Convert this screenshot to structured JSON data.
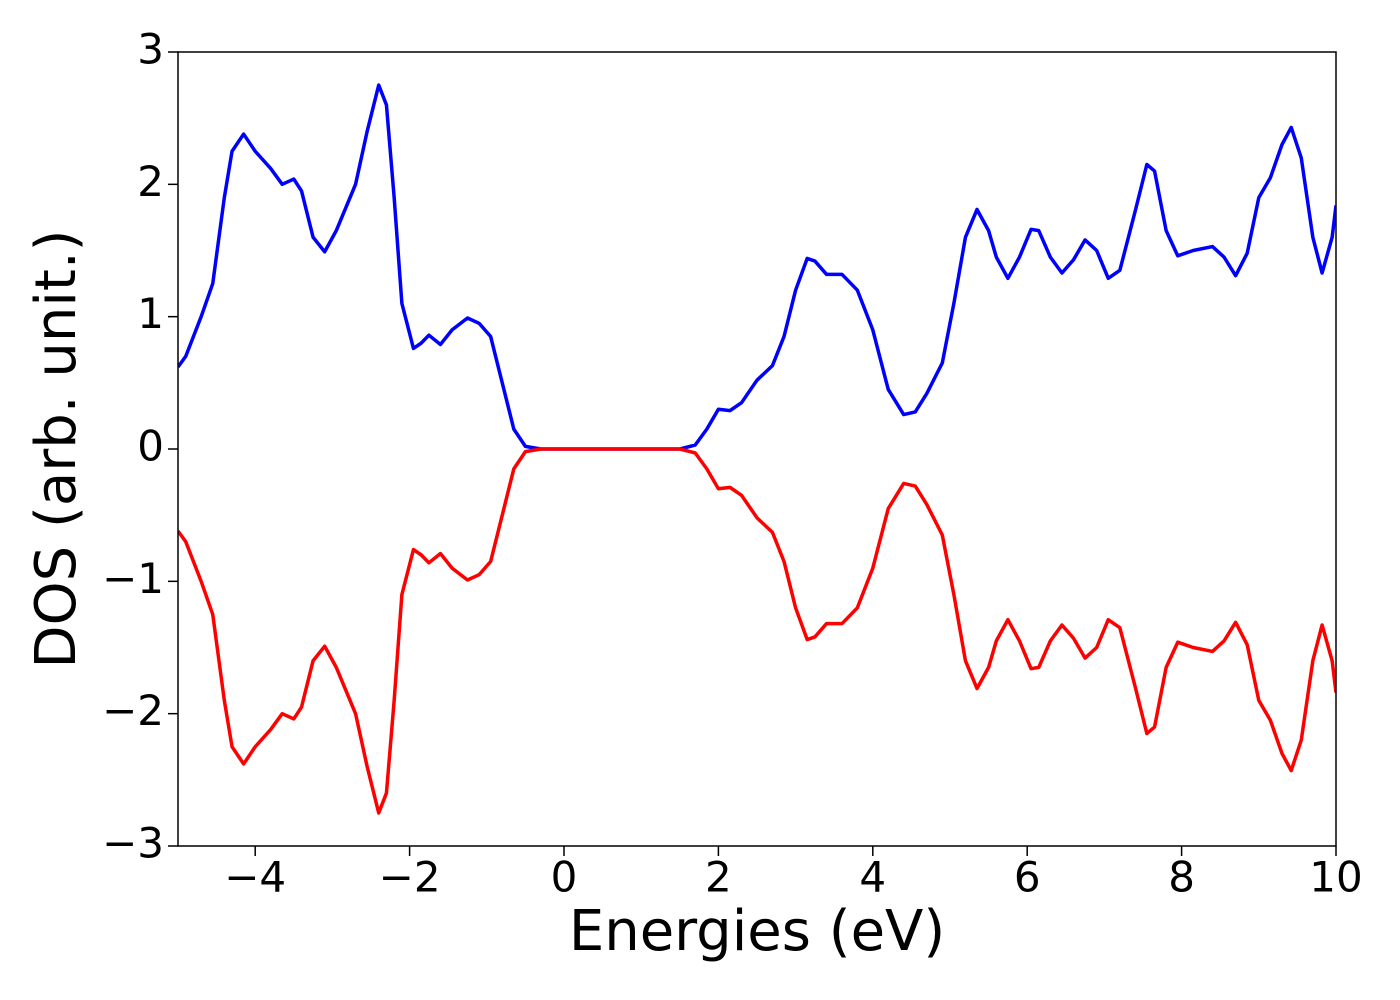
{
  "chart_data": {
    "type": "line",
    "xlabel": "Energies (eV)",
    "ylabel": "DOS (arb. unit.)",
    "x": [
      -5,
      -4.9,
      -4.7,
      -4.55,
      -4.4,
      -4.3,
      -4.15,
      -4.0,
      -3.8,
      -3.65,
      -3.5,
      -3.4,
      -3.25,
      -3.1,
      -2.95,
      -2.7,
      -2.55,
      -2.4,
      -2.3,
      -2.2,
      -2.1,
      -1.95,
      -1.85,
      -1.75,
      -1.6,
      -1.45,
      -1.25,
      -1.1,
      -0.95,
      -0.8,
      -0.65,
      -0.5,
      -0.3,
      1.5,
      1.7,
      1.85,
      2.0,
      2.15,
      2.3,
      2.5,
      2.7,
      2.85,
      3.0,
      3.15,
      3.25,
      3.4,
      3.6,
      3.8,
      4.0,
      4.2,
      4.4,
      4.55,
      4.7,
      4.9,
      5.05,
      5.2,
      5.35,
      5.5,
      5.6,
      5.75,
      5.9,
      6.05,
      6.15,
      6.3,
      6.45,
      6.6,
      6.75,
      6.9,
      7.05,
      7.2,
      7.4,
      7.55,
      7.65,
      7.8,
      7.95,
      8.15,
      8.4,
      8.55,
      8.7,
      8.85,
      9.0,
      9.15,
      9.3,
      9.42,
      9.55,
      9.7,
      9.82,
      9.95,
      10
    ],
    "series": [
      {
        "color": "#0000ff",
        "values": [
          0.62,
          0.7,
          1.0,
          1.25,
          1.9,
          2.25,
          2.38,
          2.25,
          2.12,
          2.0,
          2.04,
          1.95,
          1.6,
          1.49,
          1.65,
          2.0,
          2.4,
          2.75,
          2.6,
          1.9,
          1.1,
          0.76,
          0.8,
          0.86,
          0.79,
          0.9,
          0.99,
          0.95,
          0.85,
          0.5,
          0.15,
          0.02,
          0,
          0,
          0.03,
          0.15,
          0.3,
          0.29,
          0.35,
          0.52,
          0.63,
          0.85,
          1.2,
          1.44,
          1.42,
          1.32,
          1.32,
          1.2,
          0.9,
          0.45,
          0.26,
          0.28,
          0.42,
          0.65,
          1.1,
          1.6,
          1.81,
          1.65,
          1.45,
          1.29,
          1.45,
          1.66,
          1.65,
          1.45,
          1.33,
          1.43,
          1.58,
          1.5,
          1.29,
          1.35,
          1.8,
          2.15,
          2.1,
          1.65,
          1.46,
          1.5,
          1.53,
          1.45,
          1.31,
          1.48,
          1.9,
          2.05,
          2.3,
          2.43,
          2.2,
          1.6,
          1.33,
          1.6,
          1.84
        ]
      },
      {
        "color": "#ff0000",
        "values": [
          -0.62,
          -0.7,
          -1.0,
          -1.25,
          -1.9,
          -2.25,
          -2.38,
          -2.25,
          -2.12,
          -2.0,
          -2.04,
          -1.95,
          -1.6,
          -1.49,
          -1.65,
          -2.0,
          -2.4,
          -2.75,
          -2.6,
          -1.9,
          -1.1,
          -0.76,
          -0.8,
          -0.86,
          -0.79,
          -0.9,
          -0.99,
          -0.95,
          -0.85,
          -0.5,
          -0.15,
          -0.02,
          0,
          0,
          -0.03,
          -0.15,
          -0.3,
          -0.29,
          -0.35,
          -0.52,
          -0.63,
          -0.85,
          -1.2,
          -1.44,
          -1.42,
          -1.32,
          -1.32,
          -1.2,
          -0.9,
          -0.45,
          -0.26,
          -0.28,
          -0.42,
          -0.65,
          -1.1,
          -1.6,
          -1.81,
          -1.65,
          -1.45,
          -1.29,
          -1.45,
          -1.66,
          -1.65,
          -1.45,
          -1.33,
          -1.43,
          -1.58,
          -1.5,
          -1.29,
          -1.35,
          -1.8,
          -2.15,
          -2.1,
          -1.65,
          -1.46,
          -1.5,
          -1.53,
          -1.45,
          -1.31,
          -1.48,
          -1.9,
          -2.05,
          -2.3,
          -2.43,
          -2.2,
          -1.6,
          -1.33,
          -1.6,
          -1.84
        ]
      }
    ],
    "xlim": [
      -5,
      10
    ],
    "xticks": [
      {
        "value": -4,
        "label": "−4"
      },
      {
        "value": -2,
        "label": "−2"
      },
      0,
      2,
      4,
      6,
      8,
      10
    ],
    "ylim": [
      -3,
      3
    ],
    "yticks": [
      {
        "value": -3,
        "label": "−3"
      },
      {
        "value": -2,
        "label": "−2"
      },
      {
        "value": -1,
        "label": "−1"
      },
      0,
      1,
      2,
      3
    ],
    "grid": false
  }
}
